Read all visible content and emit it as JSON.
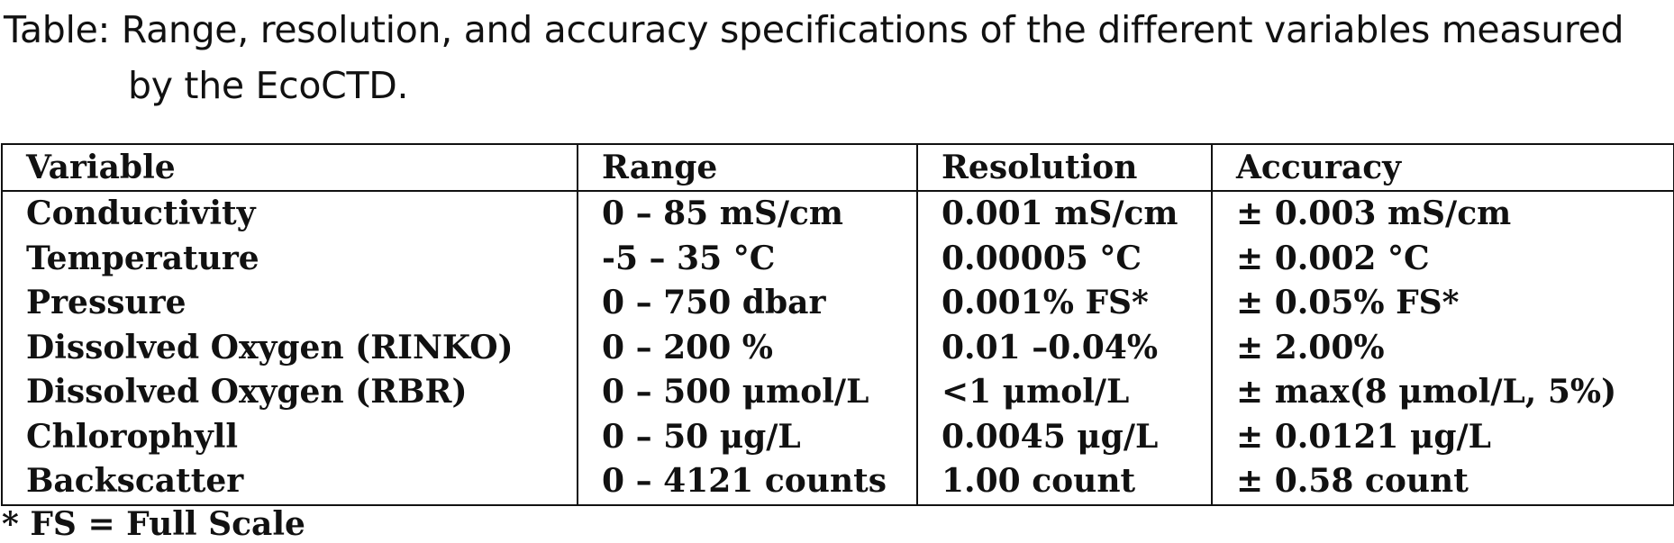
{
  "caption": {
    "label": "Table:",
    "text_line1": "Range, resolution, and accuracy specifications of the different variables measured",
    "text_line2": "by the EcoCTD."
  },
  "table": {
    "headers": [
      "Variable",
      "Range",
      "Resolution",
      "Accuracy"
    ],
    "rows": [
      [
        "Conductivity",
        "0 – 85 mS/cm",
        "0.001 mS/cm",
        "± 0.003 mS/cm"
      ],
      [
        "Temperature",
        "-5 – 35 °C",
        "0.00005 °C",
        "± 0.002 °C"
      ],
      [
        "Pressure",
        "0 – 750 dbar",
        "0.001% FS*",
        "± 0.05% FS*"
      ],
      [
        "Dissolved Oxygen (RINKO)",
        "0 – 200 %",
        "0.01 –0.04%",
        "± 2.00%"
      ],
      [
        "Dissolved Oxygen (RBR)",
        "0 – 500 μmol/L",
        "<1 μmol/L",
        "± max(8 μmol/L, 5%)"
      ],
      [
        "Chlorophyll",
        "0 – 50 μg/L",
        "0.0045 μg/L",
        "± 0.0121 μg/L"
      ],
      [
        "Backscatter",
        "0 – 4121 counts",
        "1.00 count",
        "± 0.58 count"
      ]
    ]
  },
  "footnote": "* FS = Full Scale"
}
